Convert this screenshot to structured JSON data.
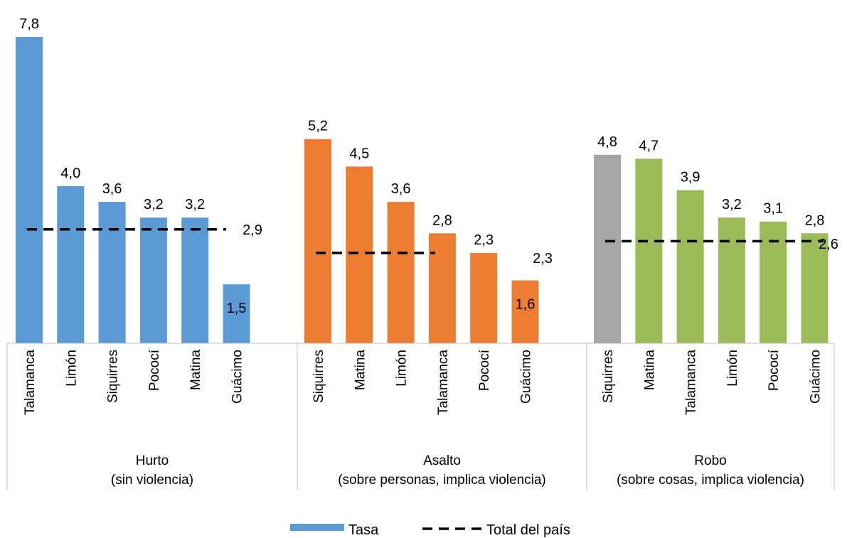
{
  "chart_data": {
    "type": "bar",
    "groups": [
      {
        "name": "Hurto",
        "subtitle": "(sin violencia)",
        "color": "#5b9bd5",
        "national_total": 2.9,
        "national_total_label": "2,9",
        "bars": [
          {
            "category": "Talamanca",
            "value": 7.8,
            "label": "7,8"
          },
          {
            "category": "Limón",
            "value": 4.0,
            "label": "4,0"
          },
          {
            "category": "Siquirres",
            "value": 3.6,
            "label": "3,6"
          },
          {
            "category": "Pococí",
            "value": 3.2,
            "label": "3,2"
          },
          {
            "category": "Matina",
            "value": 3.2,
            "label": "3,2"
          },
          {
            "category": "Guácimo",
            "value": 1.5,
            "label": "1,5"
          }
        ]
      },
      {
        "name": "Asalto",
        "subtitle": "(sobre personas, implica violencia)",
        "color": "#ed7d31",
        "national_total": 2.3,
        "national_total_label": "2,3",
        "bars": [
          {
            "category": "Siquirres",
            "value": 5.2,
            "label": "5,2"
          },
          {
            "category": "Matina",
            "value": 4.5,
            "label": "4,5"
          },
          {
            "category": "Limón",
            "value": 3.6,
            "label": "3,6"
          },
          {
            "category": "Talamanca",
            "value": 2.8,
            "label": "2,8"
          },
          {
            "category": "Pococí",
            "value": 2.3,
            "label": "2,3"
          },
          {
            "category": "Guácimo",
            "value": 1.6,
            "label": "1,6"
          }
        ]
      },
      {
        "name": "Robo",
        "subtitle": "(sobre cosas, implica violencia)",
        "color": "#9bbb59",
        "national_total": 2.6,
        "national_total_label": "2,6",
        "bars": [
          {
            "category": "Siquirres",
            "value": 4.8,
            "label": "4,8",
            "color": "#a5a5a5"
          },
          {
            "category": "Matina",
            "value": 4.7,
            "label": "4,7"
          },
          {
            "category": "Talamanca",
            "value": 3.9,
            "label": "3,9"
          },
          {
            "category": "Limón",
            "value": 3.2,
            "label": "3,2"
          },
          {
            "category": "Pococí",
            "value": 3.1,
            "label": "3,1"
          },
          {
            "category": "Guácimo",
            "value": 2.8,
            "label": "2,8"
          }
        ]
      }
    ],
    "legend": {
      "position": "bottom",
      "bar_label": "Tasa",
      "bar_color": "#5b9bd5",
      "line_label": "Total del país",
      "line_color": "#000000"
    },
    "ylim": [
      0,
      7.8
    ],
    "grid": false
  }
}
